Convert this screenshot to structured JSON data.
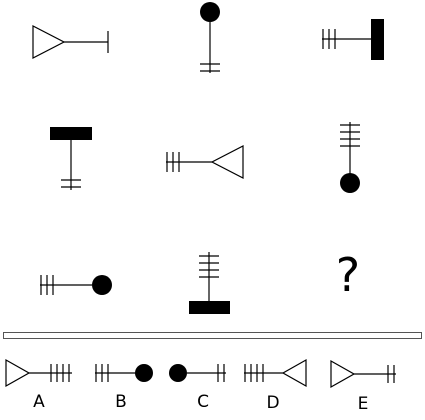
{
  "puzzle": {
    "question_mark": "?",
    "grid": [
      [
        "triangle-left-bar-end",
        "circle-top-double-tick",
        "bar-right-triple-tick"
      ],
      [
        "bar-top-double-tick",
        "triangle-right-triple-tick",
        "circle-bottom-quad-tick"
      ],
      [
        "circle-right-triple-tick",
        "bar-bottom-quad-tick",
        "unknown"
      ]
    ]
  },
  "options": [
    {
      "label": "A",
      "symbol": "triangle-left-quad-tick"
    },
    {
      "label": "B",
      "symbol": "circle-right-triple-tick"
    },
    {
      "label": "C",
      "symbol": "circle-left-double-tick"
    },
    {
      "label": "D",
      "symbol": "triangle-right-quad-tick"
    },
    {
      "label": "E",
      "symbol": "triangle-left-double-tick"
    }
  ]
}
